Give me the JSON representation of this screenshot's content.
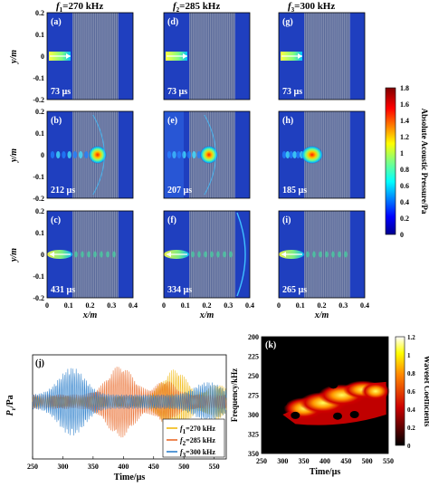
{
  "figure": {
    "column_titles": [
      {
        "prefix": "f",
        "sub": "1",
        "rest": "=270 kHz"
      },
      {
        "prefix": "f",
        "sub": "2",
        "rest": "=285 kHz"
      },
      {
        "prefix": "f",
        "sub": "3",
        "rest": "=300 kHz"
      }
    ],
    "map_ylabel": "y/m",
    "map_xlabel": "x/m",
    "panels": [
      {
        "tag": "(a)",
        "time": "73 µs"
      },
      {
        "tag": "(d)",
        "time": "73 µs"
      },
      {
        "tag": "(g)",
        "time": "73 µs"
      },
      {
        "tag": "(b)",
        "time": "212 µs"
      },
      {
        "tag": "(e)",
        "time": "207 µs"
      },
      {
        "tag": "(h)",
        "time": "185 µs"
      },
      {
        "tag": "(c)",
        "time": "431 µs"
      },
      {
        "tag": "(f)",
        "time": "334 µs"
      },
      {
        "tag": "(i)",
        "time": "265 µs"
      }
    ],
    "map_yticks": [
      "0.2",
      "0.1",
      "0",
      "-0.1",
      "-0.2"
    ],
    "map_xticks": [
      "0",
      "0.1",
      "0.2",
      "0.3",
      "0.4"
    ],
    "colorbar_label": "Absolute Acoustic Pressure/Pa",
    "colorbar_ticks": [
      "1.8",
      "1.6",
      "1.4",
      "1.2",
      "1",
      "0.8",
      "0.6",
      "0.4",
      "0.2",
      "0"
    ],
    "colors": {
      "map_background": "#1f3fbf",
      "high": "#a00000"
    }
  },
  "chart_data": [
    {
      "type": "heatmap",
      "title": "",
      "xlabel": "x/m",
      "ylabel": "y/m",
      "xlim": [
        0,
        0.4
      ],
      "ylim": [
        -0.2,
        0.2
      ],
      "colorbar_range": [
        0,
        1.8
      ],
      "colorbar_label": "Absolute Acoustic Pressure/Pa"
    },
    {
      "type": "line",
      "panel_tag": "(j)",
      "xlabel": "Time/µs",
      "ylabel_prefix": "P",
      "ylabel_sub": "r",
      "ylabel_rest": "/Pa",
      "xlim": [
        250,
        570
      ],
      "x_ticks": [
        "250",
        "300",
        "350",
        "400",
        "450",
        "500",
        "550"
      ],
      "series": [
        {
          "name_prefix": "f",
          "name_sub": "1",
          "name_rest": "=270 kHz",
          "color": "#f0b400"
        },
        {
          "name_prefix": "f",
          "name_sub": "2",
          "name_rest": "=285 kHz",
          "color": "#e8601c"
        },
        {
          "name_prefix": "f",
          "name_sub": "3",
          "name_rest": "=300 kHz",
          "color": "#1f77c8"
        }
      ],
      "legend": "bottom-right"
    },
    {
      "type": "heatmap",
      "panel_tag": "(k)",
      "xlabel": "Time/µs",
      "ylabel": "Frequency/kHz",
      "xlim": [
        250,
        550
      ],
      "ylim": [
        200,
        350
      ],
      "x_ticks": [
        "250",
        "300",
        "350",
        "400",
        "450",
        "500",
        "550"
      ],
      "y_ticks": [
        "200",
        "225",
        "250",
        "275",
        "300",
        "325",
        "350"
      ],
      "colorbar_label": "Wavelet Coefficients",
      "colorbar_ticks": [
        "1.2",
        "1",
        "0.8",
        "0.6",
        "0.4",
        "0.2",
        "0"
      ],
      "colorbar_range": [
        0,
        1.2
      ]
    }
  ]
}
